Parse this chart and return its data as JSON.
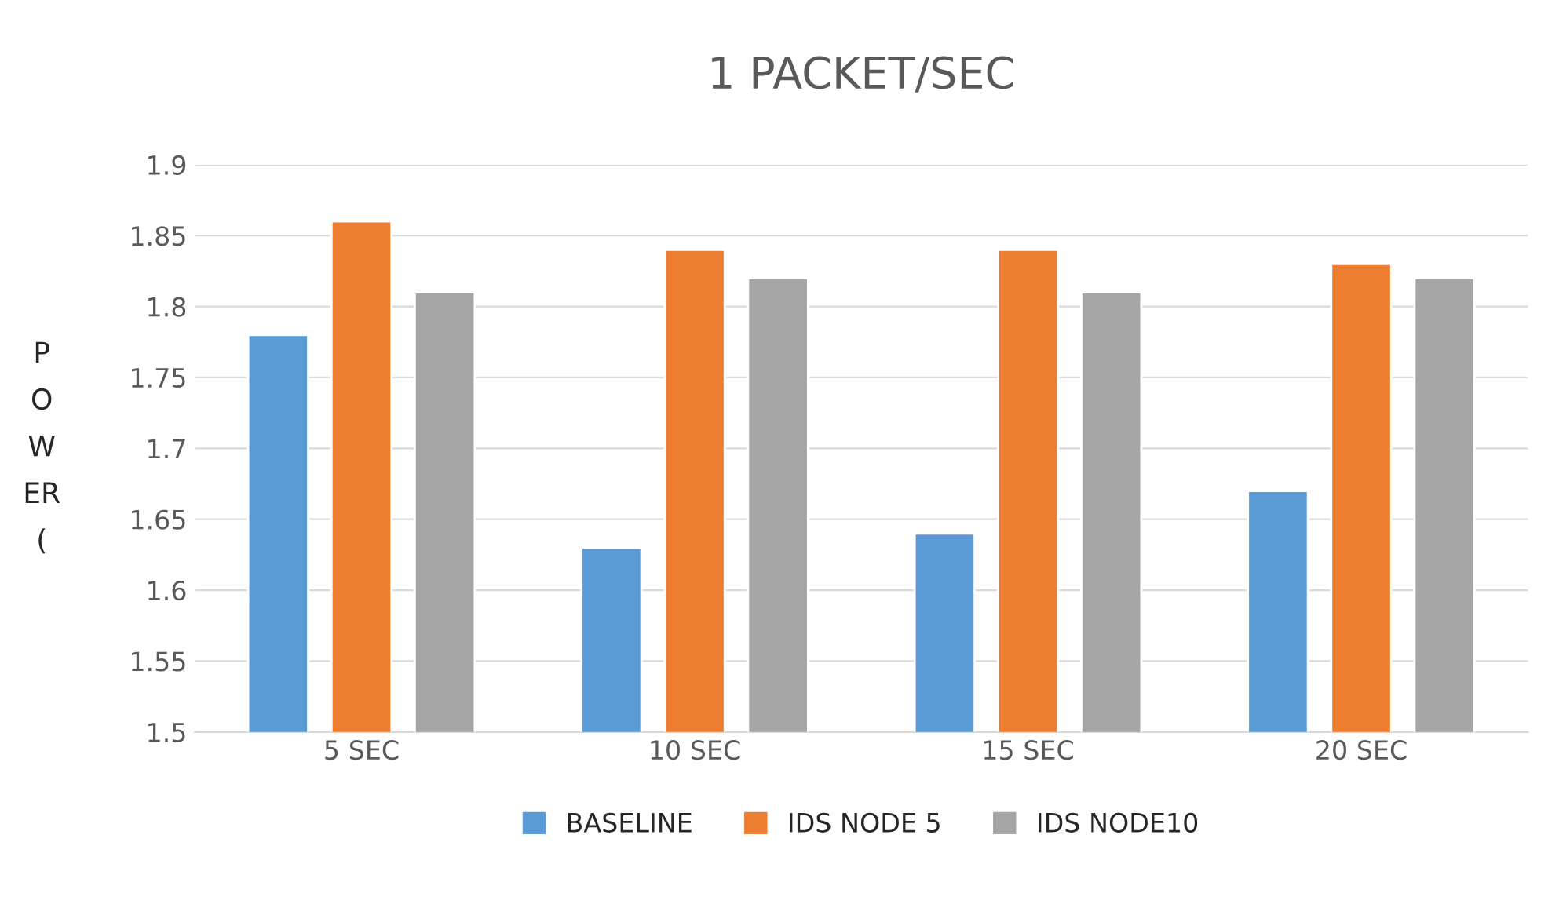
{
  "chart_data": {
    "type": "bar",
    "title": "1 PACKET/SEC",
    "ylabel": "P\nO\nW\nER\n(",
    "categories": [
      "5 SEC",
      "10 SEC",
      "15 SEC",
      "20 SEC"
    ],
    "series": [
      {
        "name": "BASELINE",
        "color": "#5b9bd5",
        "values": [
          1.78,
          1.63,
          1.64,
          1.67
        ]
      },
      {
        "name": "IDS NODE 5",
        "color": "#ed7d31",
        "values": [
          1.86,
          1.84,
          1.84,
          1.83
        ]
      },
      {
        "name": "IDS NODE10",
        "color": "#a5a5a5",
        "values": [
          1.81,
          1.82,
          1.81,
          1.82
        ]
      }
    ],
    "ylim": [
      1.5,
      1.9
    ],
    "yticks": [
      1.5,
      1.55,
      1.6,
      1.65,
      1.7,
      1.75,
      1.8,
      1.85,
      1.9
    ],
    "grid": "y",
    "legend": "bottom"
  }
}
